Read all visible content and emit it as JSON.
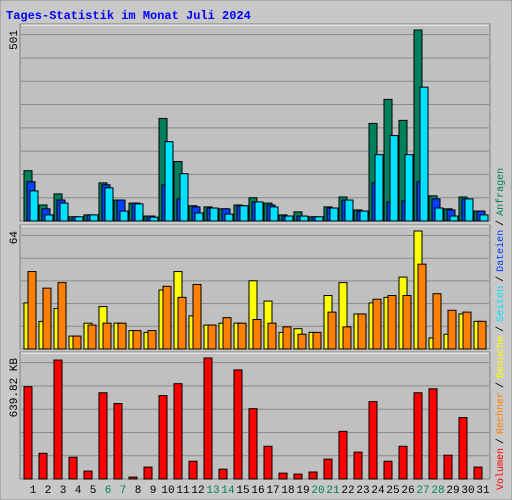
{
  "chart_data": [
    {
      "type": "bar",
      "title": "Tages-Statistik im Monat Juli 2024",
      "ylim": [
        0,
        501
      ],
      "yticks": [
        501
      ],
      "series": [
        {
          "name": "Anfragen",
          "color": "#00805c",
          "values": [
            132,
            42,
            71,
            11,
            16,
            100,
            55,
            47,
            13,
            269,
            156,
            40,
            37,
            32,
            42,
            61,
            47,
            16,
            24,
            11,
            37,
            63,
            29,
            256,
            319,
            264,
            501,
            66,
            32,
            63,
            26
          ]
        },
        {
          "name": "Dateien",
          "color": "#0040ff",
          "values": [
            103,
            32,
            55,
            11,
            16,
            95,
            55,
            47,
            13,
            95,
            58,
            37,
            34,
            32,
            40,
            50,
            42,
            13,
            13,
            11,
            34,
            55,
            26,
            100,
            50,
            53,
            103,
            58,
            29,
            58,
            26
          ]
        },
        {
          "name": "Seiten",
          "color": "#00e0ff",
          "values": [
            79,
            16,
            47,
            11,
            16,
            87,
            26,
            45,
            10,
            208,
            124,
            21,
            34,
            18,
            40,
            50,
            37,
            13,
            13,
            11,
            34,
            55,
            26,
            174,
            224,
            174,
            351,
            34,
            13,
            58,
            16
          ]
        }
      ]
    },
    {
      "type": "bar",
      "ylim": [
        0,
        64
      ],
      "yticks": [
        64
      ],
      "series": [
        {
          "name": "Besuche",
          "color": "#ffff00",
          "values": [
            25,
            15,
            22,
            7,
            14,
            23,
            14,
            10,
            9,
            32,
            42,
            18,
            13,
            14,
            14,
            37,
            26,
            9,
            11,
            9,
            29,
            36,
            19,
            25,
            28,
            39,
            64,
            6,
            8,
            19,
            15
          ]
        },
        {
          "name": "Rechner",
          "color": "#ff8000",
          "values": [
            42,
            33,
            36,
            7,
            13,
            14,
            14,
            10,
            10,
            34,
            28,
            35,
            13,
            17,
            14,
            16,
            14,
            12,
            8,
            9,
            20,
            12,
            19,
            27,
            29,
            29,
            46,
            30,
            21,
            20,
            15
          ]
        }
      ]
    },
    {
      "type": "bar",
      "ylim": [
        0,
        639.82
      ],
      "yticks": [
        {
          "value": 639.82,
          "label": "639.82 KB"
        }
      ],
      "categories": [
        "1",
        "2",
        "3",
        "4",
        "5",
        "6",
        "7",
        "8",
        "9",
        "10",
        "11",
        "12",
        "13",
        "14",
        "15",
        "16",
        "17",
        "18",
        "19",
        "20",
        "21",
        "22",
        "23",
        "24",
        "25",
        "26",
        "27",
        "28",
        "29",
        "30",
        "31"
      ],
      "category_colors": [
        "#000000",
        "#000000",
        "#000000",
        "#000000",
        "#000000",
        "#00805c",
        "#00805c",
        "#000000",
        "#000000",
        "#000000",
        "#000000",
        "#000000",
        "#00805c",
        "#00805c",
        "#000000",
        "#000000",
        "#000000",
        "#000000",
        "#000000",
        "#00805c",
        "#00805c",
        "#000000",
        "#000000",
        "#000000",
        "#000000",
        "#000000",
        "#00805c",
        "#00805c",
        "#000000",
        "#000000",
        "#000000"
      ],
      "series": [
        {
          "name": "Volumen",
          "color": "#ff0000",
          "values": [
            488,
            136,
            629,
            115,
            42,
            456,
            399,
            10,
            63,
            441,
            504,
            94,
            639.82,
            52,
            577,
            372,
            173,
            31,
            26,
            37,
            105,
            252,
            142,
            409,
            94,
            173,
            456,
            477,
            126,
            325,
            63
          ]
        }
      ]
    }
  ],
  "legend_separator": "/"
}
